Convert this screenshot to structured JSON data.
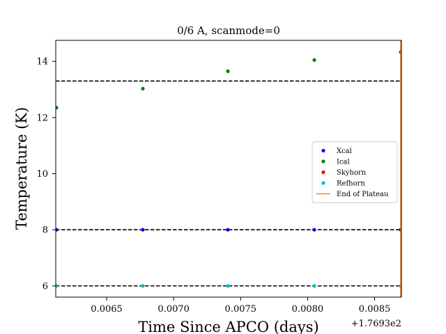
{
  "chart_data": {
    "type": "scatter",
    "title": "0/6 A, scanmode=0",
    "xlabel": "Time Since APCO (days)",
    "ylabel": "Temperature (K)",
    "x_offset_label": "+1.7693e2",
    "xlim": [
      0.00612,
      0.0087
    ],
    "ylim": [
      5.6,
      14.75
    ],
    "x_ticks": [
      0.0065,
      0.007,
      0.0075,
      0.008,
      0.0085
    ],
    "x_tick_labels": [
      "0.0065",
      "0.0070",
      "0.0075",
      "0.0080",
      "0.0085"
    ],
    "y_ticks": [
      6,
      8,
      10,
      12,
      14
    ],
    "y_tick_labels": [
      "6",
      "8",
      "10",
      "12",
      "14"
    ],
    "grid": false,
    "legend_position": "center-right",
    "series": [
      {
        "name": "Xcal",
        "color": "#0000ff",
        "marker": "dot",
        "points": [
          [
            0.006125,
            8.0
          ],
          [
            0.00677,
            8.0
          ],
          [
            0.007405,
            8.0
          ],
          [
            0.00805,
            8.0
          ],
          [
            0.008695,
            8.0
          ]
        ]
      },
      {
        "name": "Ical",
        "color": "#008000",
        "marker": "dot",
        "points": [
          [
            0.006125,
            12.35
          ],
          [
            0.00677,
            13.03
          ],
          [
            0.007405,
            13.65
          ],
          [
            0.00805,
            14.05
          ],
          [
            0.008695,
            14.33
          ]
        ]
      },
      {
        "name": "Skyhorn",
        "color": "#ff0000",
        "marker": "dot",
        "points": []
      },
      {
        "name": "Refhorn",
        "color": "#00bfbf",
        "marker": "dot",
        "points": [
          [
            0.006125,
            6.0
          ],
          [
            0.00677,
            6.0
          ],
          [
            0.007405,
            6.0
          ],
          [
            0.00805,
            6.0
          ],
          [
            0.008695,
            6.0
          ]
        ]
      },
      {
        "name": "End of Plateau",
        "color": "#ff7f0e",
        "marker": "line",
        "vline_x": 0.008695
      }
    ],
    "hlines": [
      {
        "y": 13.3,
        "color": "#000000",
        "style": "dashed"
      },
      {
        "y": 8.0,
        "color": "#000000",
        "style": "dashed"
      },
      {
        "y": 6.0,
        "color": "#000000",
        "style": "dashed"
      }
    ]
  }
}
